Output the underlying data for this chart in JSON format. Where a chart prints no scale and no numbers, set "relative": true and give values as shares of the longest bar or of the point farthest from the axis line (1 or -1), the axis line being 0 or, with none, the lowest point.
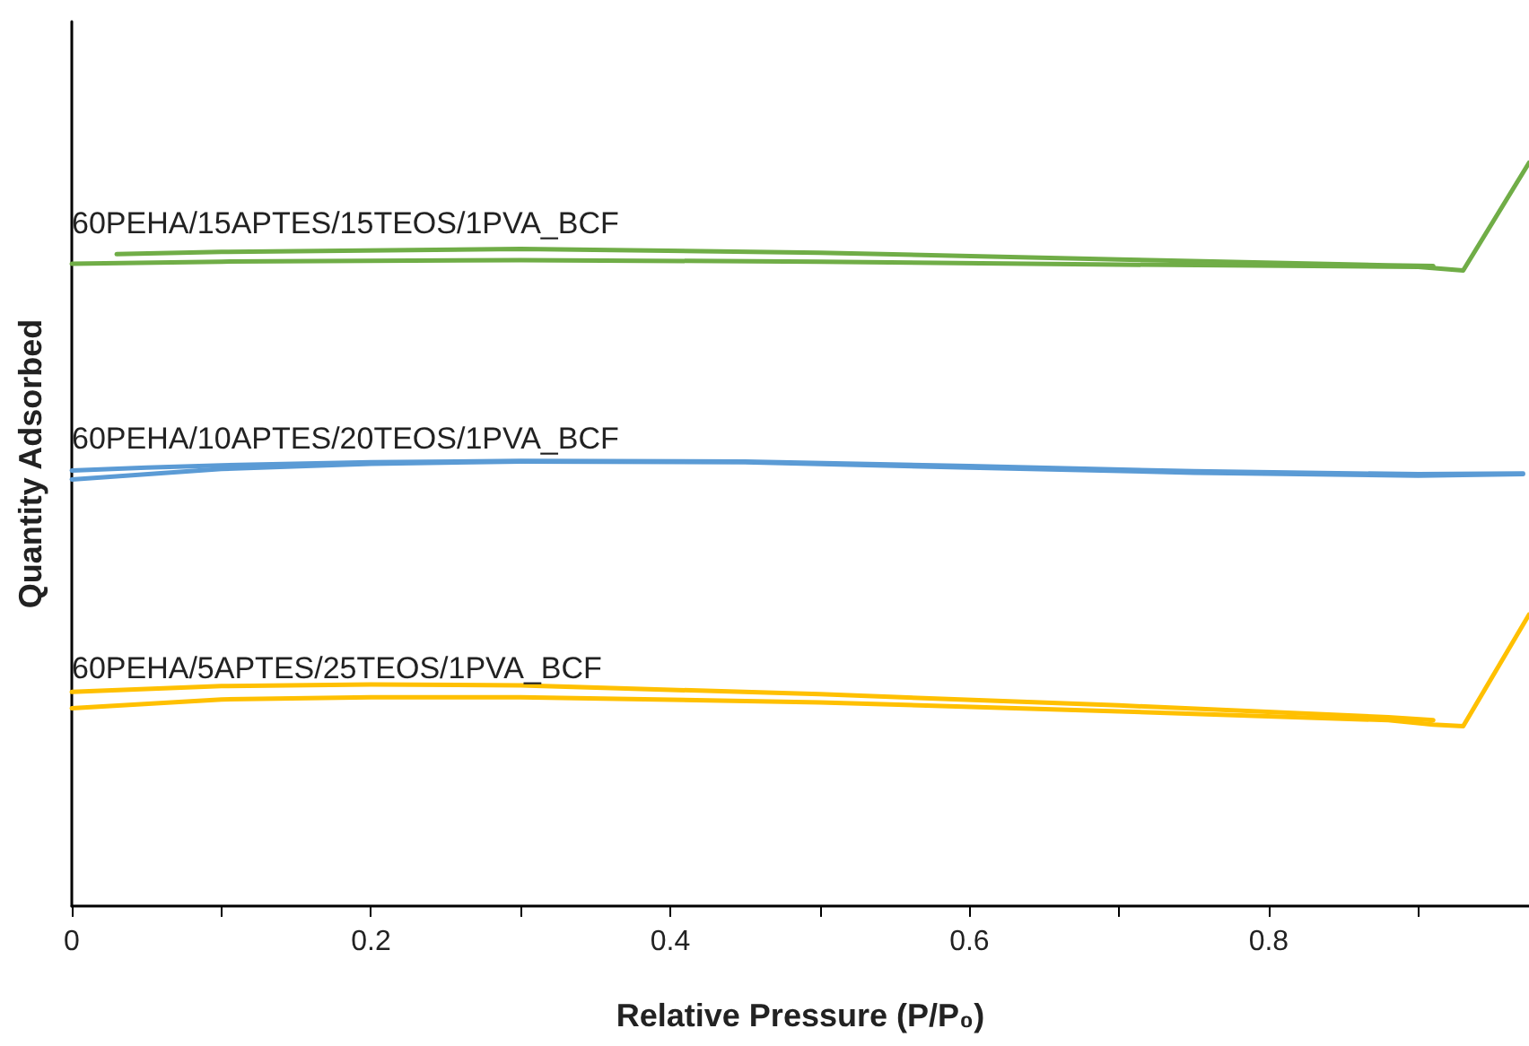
{
  "chart_data": {
    "type": "line",
    "relative": true,
    "xlabel": "Relative Pressure (P/P₀)",
    "ylabel": "Quantity Adsorbed",
    "xlim": [
      0,
      0.974
    ],
    "xticks": [
      0,
      {
        "value": 0.1,
        "label": null
      },
      0.2,
      {
        "value": 0.3,
        "label": null
      },
      0.4,
      {
        "value": 0.5,
        "label": null
      },
      0.6,
      {
        "value": 0.7,
        "label": null
      },
      0.8,
      {
        "value": 0.9,
        "label": null
      }
    ],
    "grid": false,
    "legend": false,
    "marker": "none",
    "line_style": "solid",
    "series": [
      {
        "name": "60PEHA/15APTES/15TEOS/1PVA_BCF",
        "color": "#70ad47",
        "x": [
          0,
          0.1,
          0.3,
          0.5,
          0.7,
          0.9,
          0.93,
          0.974
        ],
        "values": [
          0.864,
          0.867,
          0.869,
          0.867,
          0.863,
          0.86,
          0.855,
          1.0
        ]
      },
      {
        "color": "#70ad47",
        "x": [
          0.03,
          0.1,
          0.3,
          0.5,
          0.7,
          0.88,
          0.91
        ],
        "values": [
          0.877,
          0.88,
          0.884,
          0.879,
          0.87,
          0.862,
          0.861
        ]
      },
      {
        "name": "60PEHA/10APTES/20TEOS/1PVA_BCF",
        "color": "#5b9bd5",
        "x": [
          0,
          0.1,
          0.2,
          0.3,
          0.45,
          0.6,
          0.75,
          0.9,
          0.97
        ],
        "values": [
          0.574,
          0.588,
          0.595,
          0.598,
          0.597,
          0.59,
          0.583,
          0.579,
          0.581
        ]
      },
      {
        "color": "#5b9bd5",
        "x": [
          0,
          0.05,
          0.1,
          0.2,
          0.3,
          0.45,
          0.6,
          0.75,
          0.9,
          0.97
        ],
        "values": [
          0.586,
          0.59,
          0.593,
          0.597,
          0.599,
          0.598,
          0.592,
          0.585,
          0.581,
          0.582
        ]
      },
      {
        "name": "60PEHA/5APTES/25TEOS/1PVA_BCF",
        "color": "#ffc000",
        "x": [
          0,
          0.1,
          0.2,
          0.3,
          0.5,
          0.7,
          0.88,
          0.91,
          0.93,
          0.974
        ],
        "values": [
          0.266,
          0.278,
          0.281,
          0.281,
          0.274,
          0.262,
          0.25,
          0.244,
          0.242,
          0.392
        ]
      },
      {
        "color": "#ffc000",
        "x": [
          0,
          0.1,
          0.2,
          0.3,
          0.5,
          0.7,
          0.88,
          0.91
        ],
        "values": [
          0.288,
          0.296,
          0.298,
          0.297,
          0.285,
          0.27,
          0.254,
          0.25
        ]
      }
    ]
  }
}
